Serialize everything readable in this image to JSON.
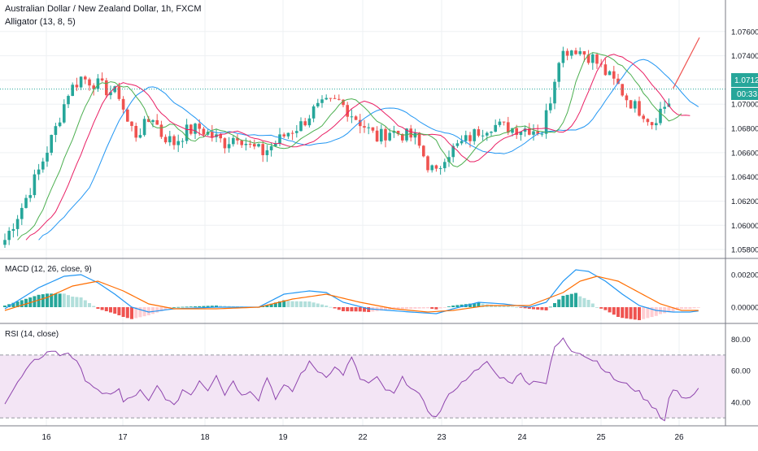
{
  "header": {
    "symbol": "Australian Dollar / New Zealand Dollar, 1h, FXCM",
    "indicator": "Alligator (13, 8, 5)"
  },
  "price_badge": {
    "price": "1.07125",
    "countdown": "00:33"
  },
  "panes": {
    "macd_label": "MACD (12, 26, close, 9)",
    "rsi_label": "RSI (14, close)"
  },
  "colors": {
    "up": "#26a69a",
    "down": "#ef5350",
    "jaw": "#2196f3",
    "teeth": "#e91e63",
    "lips": "#4caf50",
    "macd": "#2196f3",
    "signal": "#ff6d00",
    "rsi": "#8e44ad",
    "rsi_band": "#f3e5f5",
    "badge": "#26a69a"
  },
  "chart_data": [
    {
      "type": "candlestick",
      "title": "Australian Dollar / New Zealand Dollar, 1h, FXCM",
      "x_ticks": [
        "16",
        "17",
        "18",
        "19",
        "22",
        "23",
        "24",
        "25",
        "26"
      ],
      "y_ticks": [
        "1.07600",
        "1.07400",
        "1.07200",
        "1.07000",
        "1.06800",
        "1.06600",
        "1.06400",
        "1.06200",
        "1.06000",
        "1.05800"
      ],
      "ylim": [
        1.0574,
        1.0782
      ],
      "current_price": 1.07125,
      "series": [
        {
          "name": "Alligator (13, 8, 5)",
          "jaw_color": "#2196f3",
          "teeth_color": "#e91e63",
          "lips_color": "#4caf50"
        }
      ],
      "trend_projection": {
        "from": 1.0713,
        "to": 1.0755
      },
      "price_path": [
        [
          0,
          1.0588
        ],
        [
          4,
          1.0615
        ],
        [
          8,
          1.0645
        ],
        [
          12,
          1.068
        ],
        [
          15,
          1.071
        ],
        [
          18,
          1.0722
        ],
        [
          21,
          1.0718
        ],
        [
          24,
          1.0712
        ],
        [
          27,
          1.0708
        ],
        [
          29,
          1.0685
        ],
        [
          31,
          1.0675
        ],
        [
          33,
          1.0682
        ],
        [
          35,
          1.069
        ],
        [
          37,
          1.0675
        ],
        [
          40,
          1.0668
        ],
        [
          43,
          1.0678
        ],
        [
          46,
          1.068
        ],
        [
          49,
          1.0674
        ],
        [
          52,
          1.0668
        ],
        [
          55,
          1.0675
        ],
        [
          58,
          1.0665
        ],
        [
          61,
          1.066
        ],
        [
          64,
          1.0668
        ],
        [
          67,
          1.0677
        ],
        [
          70,
          1.0683
        ],
        [
          73,
          1.0695
        ],
        [
          76,
          1.07
        ],
        [
          79,
          1.0702
        ],
        [
          82,
          1.0692
        ],
        [
          85,
          1.0682
        ],
        [
          88,
          1.0672
        ],
        [
          91,
          1.0678
        ],
        [
          94,
          1.0675
        ],
        [
          97,
          1.0672
        ],
        [
          100,
          1.065
        ],
        [
          102,
          1.0642
        ],
        [
          104,
          1.0658
        ],
        [
          106,
          1.0663
        ],
        [
          109,
          1.067
        ],
        [
          112,
          1.0678
        ],
        [
          115,
          1.0683
        ],
        [
          118,
          1.0681
        ],
        [
          121,
          1.068
        ],
        [
          124,
          1.068
        ],
        [
          127,
          1.0678
        ],
        [
          129,
          1.0705
        ],
        [
          131,
          1.074
        ],
        [
          133,
          1.0745
        ],
        [
          135,
          1.0746
        ],
        [
          137,
          1.0742
        ],
        [
          139,
          1.0738
        ],
        [
          141,
          1.073
        ],
        [
          143,
          1.0722
        ],
        [
          145,
          1.0715
        ],
        [
          147,
          1.0705
        ],
        [
          149,
          1.0698
        ],
        [
          151,
          1.0693
        ],
        [
          153,
          1.0685
        ],
        [
          155,
          1.0695
        ],
        [
          157,
          1.0702
        ],
        [
          159,
          1.0697
        ],
        [
          161,
          1.0692
        ],
        [
          163,
          1.0694
        ],
        [
          165,
          1.0713
        ]
      ]
    },
    {
      "type": "bar",
      "title": "MACD (12, 26, close, 9)",
      "y_ticks": [
        "0.00200",
        "0.00000"
      ],
      "ylim": [
        -0.0009,
        0.0028
      ],
      "macd_path": [
        [
          0,
          -0.0001
        ],
        [
          8,
          0.0012
        ],
        [
          14,
          0.0019
        ],
        [
          18,
          0.002
        ],
        [
          22,
          0.0015
        ],
        [
          26,
          0.0008
        ],
        [
          30,
          0.0
        ],
        [
          34,
          -0.0003
        ],
        [
          40,
          -0.0001
        ],
        [
          50,
          0.0
        ],
        [
          60,
          0.0
        ],
        [
          66,
          0.0008
        ],
        [
          72,
          0.001
        ],
        [
          76,
          0.0009
        ],
        [
          80,
          0.0003
        ],
        [
          86,
          -0.0001
        ],
        [
          96,
          -0.0003
        ],
        [
          102,
          -0.0004
        ],
        [
          106,
          -0.0001
        ],
        [
          112,
          0.0003
        ],
        [
          118,
          0.0002
        ],
        [
          124,
          0.0
        ],
        [
          128,
          0.0003
        ],
        [
          132,
          0.0016
        ],
        [
          135,
          0.0023
        ],
        [
          138,
          0.0022
        ],
        [
          142,
          0.0016
        ],
        [
          146,
          0.0008
        ],
        [
          150,
          0.0001
        ],
        [
          154,
          -0.0002
        ],
        [
          158,
          -0.0003
        ],
        [
          162,
          -0.0003
        ],
        [
          165,
          -0.0002
        ]
      ],
      "signal_path": [
        [
          0,
          -0.0002
        ],
        [
          10,
          0.0006
        ],
        [
          16,
          0.0013
        ],
        [
          22,
          0.0016
        ],
        [
          28,
          0.001
        ],
        [
          34,
          0.0002
        ],
        [
          40,
          -0.0001
        ],
        [
          50,
          -0.0001
        ],
        [
          60,
          0.0
        ],
        [
          68,
          0.0005
        ],
        [
          76,
          0.0008
        ],
        [
          84,
          0.0003
        ],
        [
          92,
          -0.0001
        ],
        [
          100,
          -0.0003
        ],
        [
          106,
          -0.0002
        ],
        [
          114,
          0.0001
        ],
        [
          124,
          0.0001
        ],
        [
          132,
          0.0009
        ],
        [
          136,
          0.0016
        ],
        [
          140,
          0.0019
        ],
        [
          145,
          0.0016
        ],
        [
          150,
          0.0009
        ],
        [
          155,
          0.0002
        ],
        [
          160,
          -0.0002
        ],
        [
          165,
          -0.0002
        ]
      ]
    },
    {
      "type": "line",
      "title": "RSI (14, close)",
      "y_ticks": [
        "80.00",
        "60.00",
        "40.00"
      ],
      "ylim": [
        26,
        87
      ],
      "band": [
        30,
        70
      ],
      "rsi_path": [
        [
          0,
          40
        ],
        [
          3,
          52
        ],
        [
          5,
          60
        ],
        [
          7,
          66
        ],
        [
          9,
          70
        ],
        [
          11,
          73
        ],
        [
          13,
          70
        ],
        [
          15,
          72
        ],
        [
          17,
          65
        ],
        [
          19,
          55
        ],
        [
          21,
          50
        ],
        [
          23,
          44
        ],
        [
          25,
          46
        ],
        [
          27,
          48
        ],
        [
          28,
          40
        ],
        [
          30,
          43
        ],
        [
          32,
          47
        ],
        [
          34,
          40
        ],
        [
          36,
          50
        ],
        [
          38,
          43
        ],
        [
          40,
          37
        ],
        [
          42,
          48
        ],
        [
          44,
          45
        ],
        [
          46,
          54
        ],
        [
          48,
          48
        ],
        [
          50,
          58
        ],
        [
          52,
          45
        ],
        [
          54,
          54
        ],
        [
          56,
          44
        ],
        [
          58,
          48
        ],
        [
          60,
          42
        ],
        [
          62,
          56
        ],
        [
          64,
          43
        ],
        [
          66,
          50
        ],
        [
          68,
          47
        ],
        [
          70,
          58
        ],
        [
          72,
          65
        ],
        [
          74,
          60
        ],
        [
          76,
          57
        ],
        [
          78,
          62
        ],
        [
          80,
          58
        ],
        [
          82,
          68
        ],
        [
          84,
          55
        ],
        [
          86,
          52
        ],
        [
          88,
          55
        ],
        [
          90,
          48
        ],
        [
          92,
          45
        ],
        [
          94,
          55
        ],
        [
          96,
          50
        ],
        [
          98,
          44
        ],
        [
          100,
          35
        ],
        [
          102,
          30
        ],
        [
          104,
          40
        ],
        [
          106,
          48
        ],
        [
          108,
          52
        ],
        [
          110,
          58
        ],
        [
          112,
          60
        ],
        [
          114,
          66
        ],
        [
          116,
          58
        ],
        [
          118,
          55
        ],
        [
          120,
          53
        ],
        [
          122,
          58
        ],
        [
          124,
          52
        ],
        [
          126,
          54
        ],
        [
          128,
          52
        ],
        [
          130,
          75
        ],
        [
          132,
          80
        ],
        [
          134,
          73
        ],
        [
          136,
          72
        ],
        [
          138,
          68
        ],
        [
          140,
          66
        ],
        [
          142,
          60
        ],
        [
          144,
          55
        ],
        [
          146,
          52
        ],
        [
          148,
          50
        ],
        [
          150,
          46
        ],
        [
          152,
          40
        ],
        [
          154,
          36
        ],
        [
          155,
          31
        ],
        [
          156,
          28
        ],
        [
          157,
          42
        ],
        [
          158,
          48
        ],
        [
          160,
          44
        ],
        [
          162,
          43
        ],
        [
          164,
          48
        ],
        [
          165,
          58
        ]
      ]
    }
  ]
}
